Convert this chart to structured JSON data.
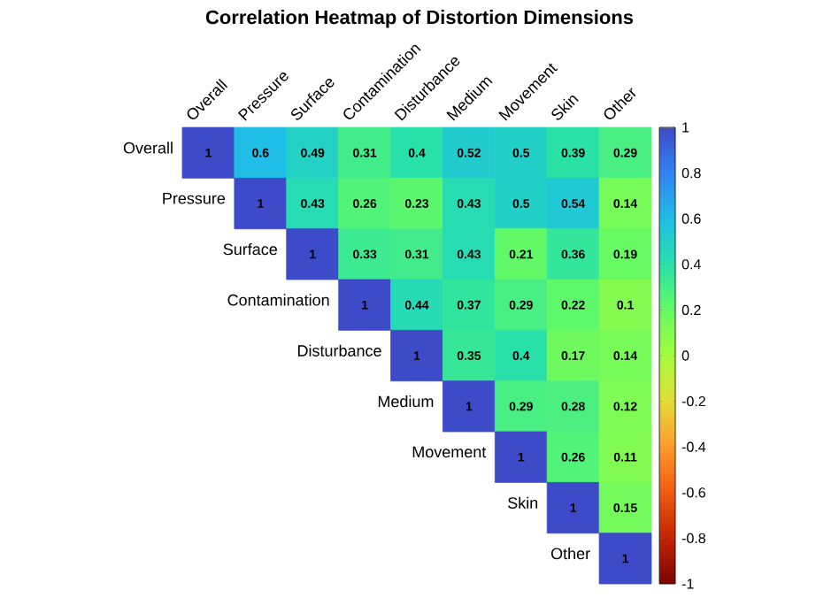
{
  "chart_data": {
    "type": "heatmap",
    "title": "Correlation Heatmap of Distortion Dimensions",
    "categories": [
      "Overall",
      "Pressure",
      "Surface",
      "Contamination",
      "Disturbance",
      "Medium",
      "Movement",
      "Skin",
      "Other"
    ],
    "y_categories": [
      "Overall",
      "Pressure",
      "Surface",
      "Contamination",
      "Disturbance",
      "Medium",
      "Movement",
      "Skin",
      "Other"
    ],
    "cells": [
      [
        1,
        0.6,
        0.49,
        0.31,
        0.4,
        0.52,
        0.5,
        0.39,
        0.29
      ],
      [
        null,
        1,
        0.43,
        0.26,
        0.23,
        0.43,
        0.5,
        0.54,
        0.14
      ],
      [
        null,
        null,
        1,
        0.33,
        0.31,
        0.43,
        0.21,
        0.36,
        0.19
      ],
      [
        null,
        null,
        null,
        1,
        0.44,
        0.37,
        0.29,
        0.22,
        0.1
      ],
      [
        null,
        null,
        null,
        null,
        1,
        0.35,
        0.4,
        0.17,
        0.14
      ],
      [
        null,
        null,
        null,
        null,
        null,
        1,
        0.29,
        0.28,
        0.12
      ],
      [
        null,
        null,
        null,
        null,
        null,
        null,
        1,
        0.26,
        0.11
      ],
      [
        null,
        null,
        null,
        null,
        null,
        null,
        null,
        1,
        0.15
      ],
      [
        null,
        null,
        null,
        null,
        null,
        null,
        null,
        null,
        1
      ]
    ],
    "clim": [
      -1,
      1
    ],
    "cticks": [
      -1,
      -0.8,
      -0.6,
      -0.4,
      -0.2,
      0,
      0.2,
      0.4,
      0.6,
      0.8,
      1
    ],
    "data_labels": true
  }
}
